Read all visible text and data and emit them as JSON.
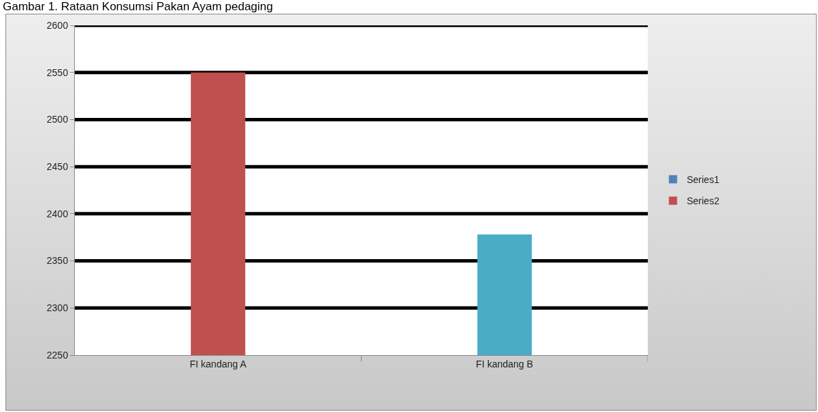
{
  "chart_data": {
    "type": "bar",
    "title": "Gambar 1. Rataan Konsumsi Pakan Ayam pedaging",
    "categories": [
      "FI kandang A",
      "FI kandang B"
    ],
    "series": [
      {
        "name": "Series1",
        "color": "#4f81bd",
        "values": [
          null,
          null
        ]
      },
      {
        "name": "Series2",
        "color": "#c0504d",
        "colors": [
          "#c0504d",
          "#4bacc6"
        ],
        "values": [
          2550,
          2378
        ]
      }
    ],
    "ylim": [
      2250,
      2600
    ],
    "yticks": [
      2250,
      2300,
      2350,
      2400,
      2450,
      2500,
      2550,
      2600
    ],
    "grid": "y",
    "legend": "right"
  }
}
